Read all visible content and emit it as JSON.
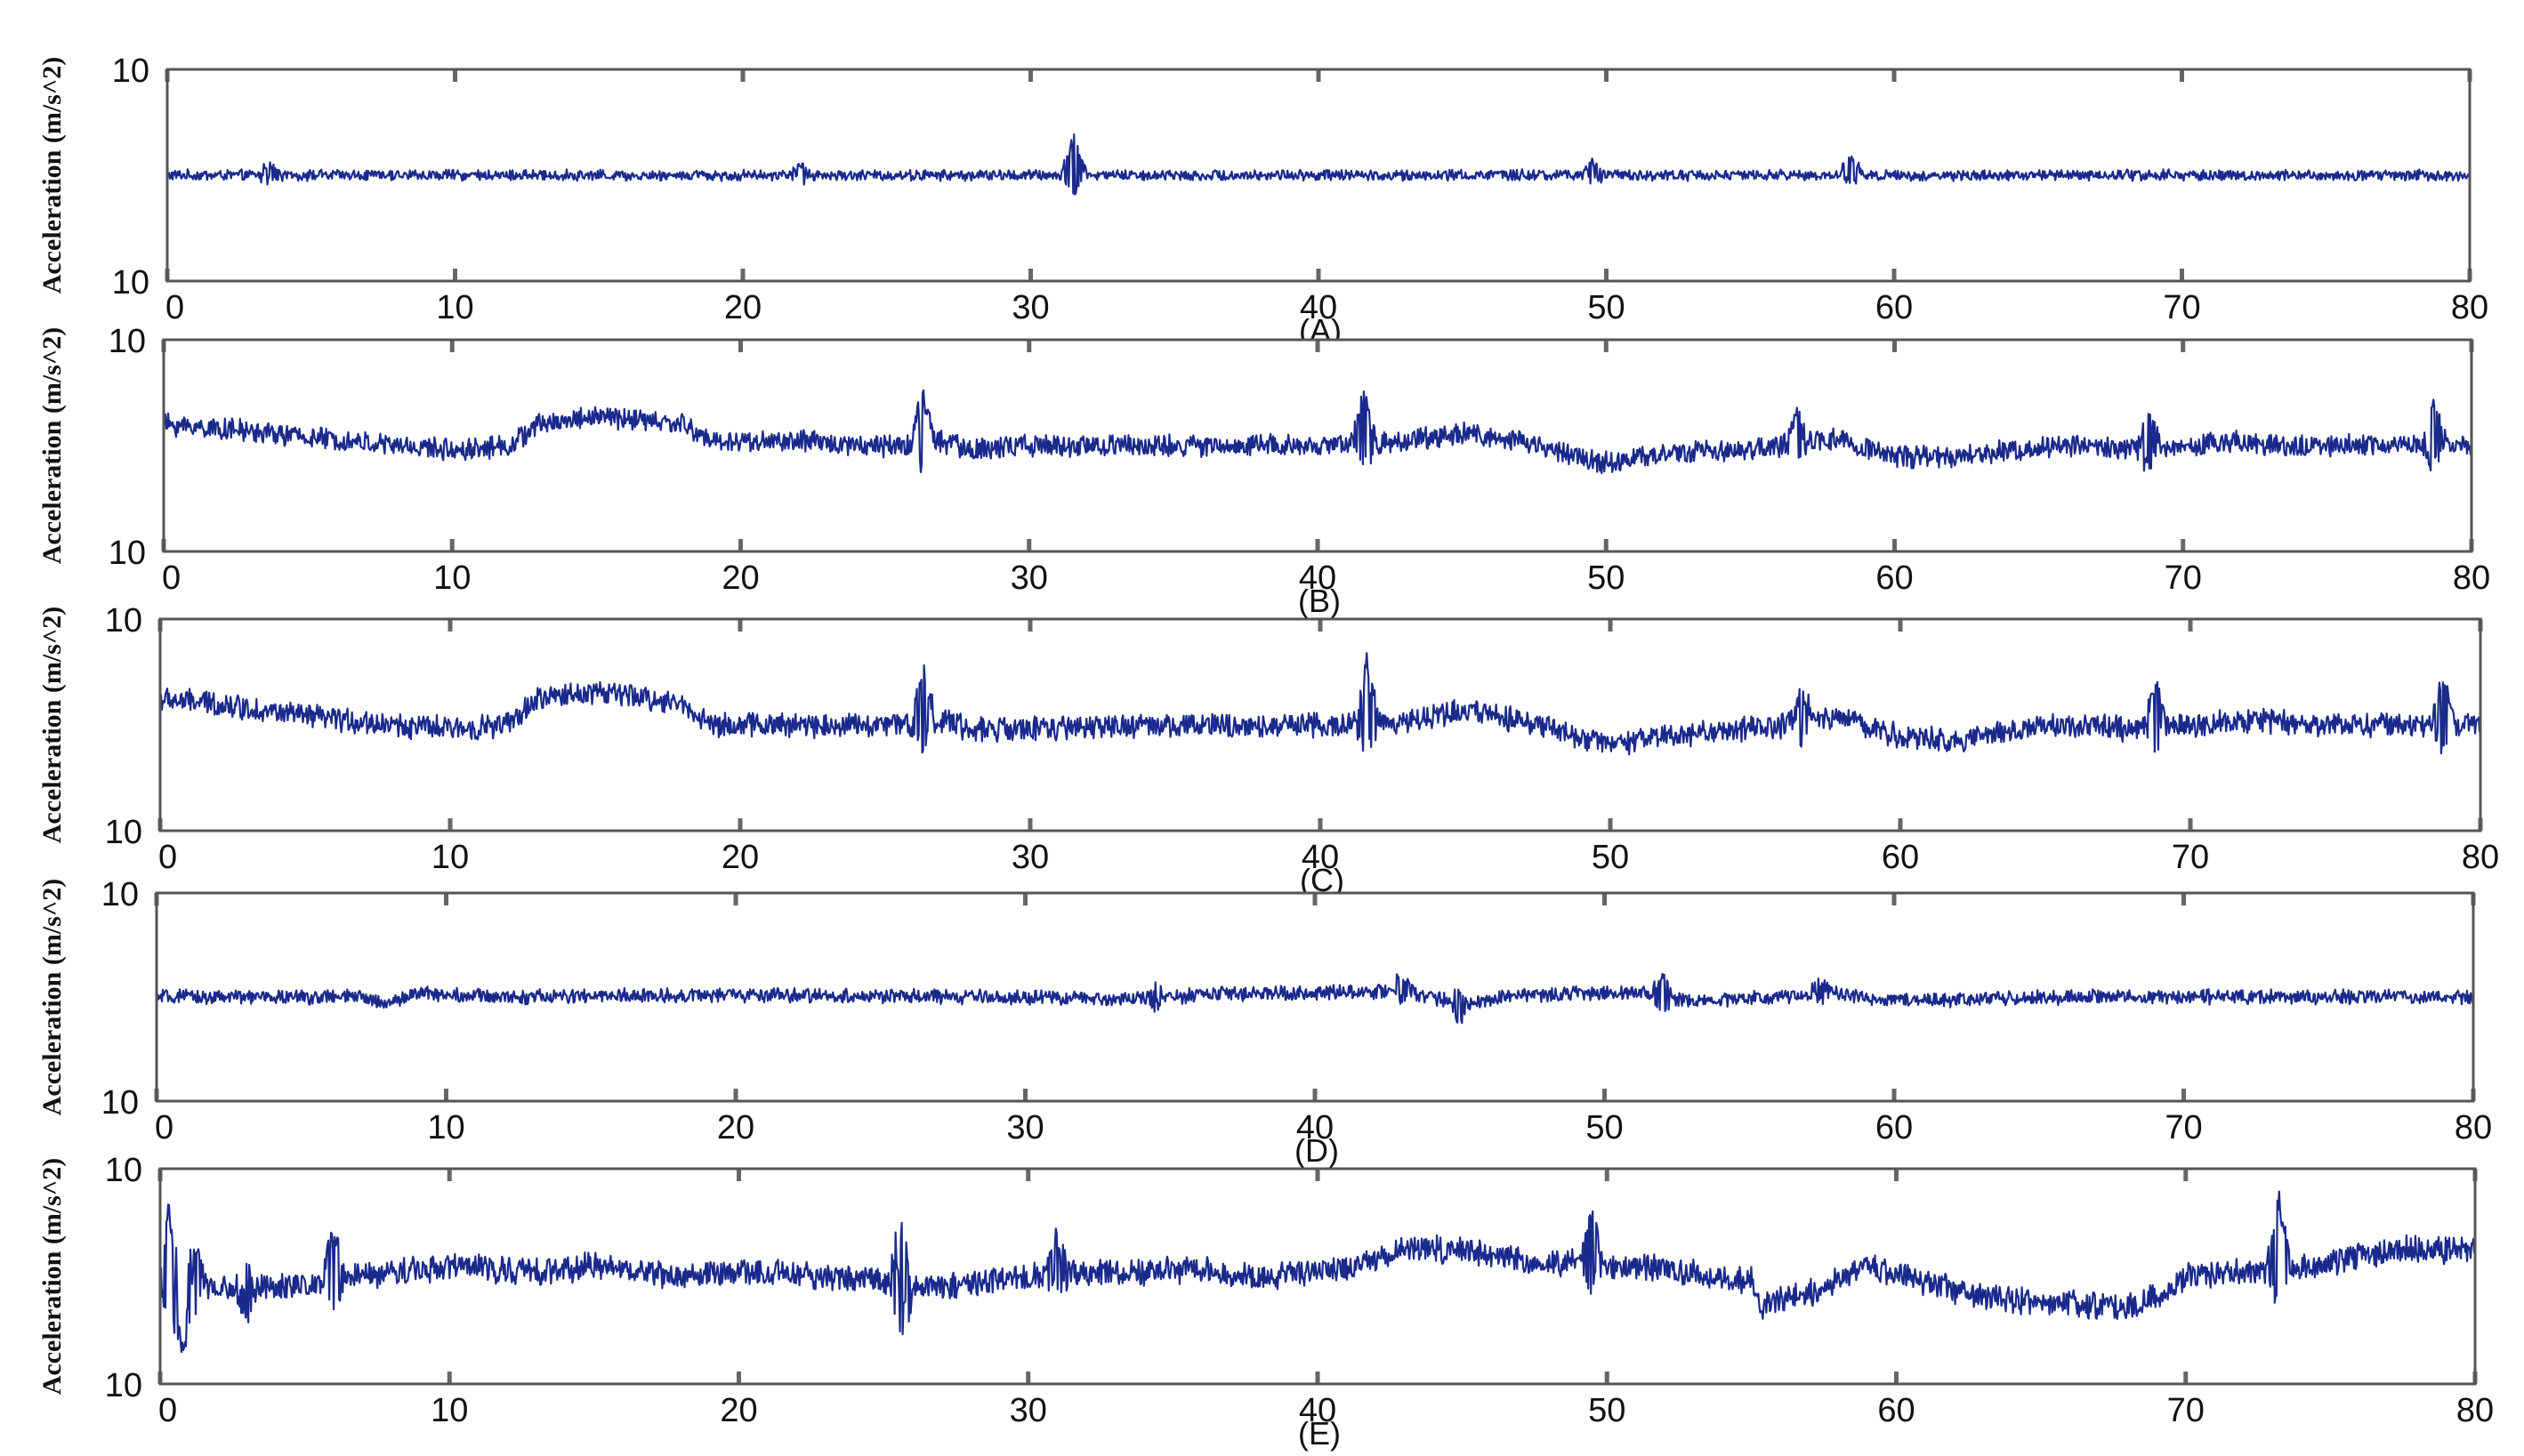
{
  "colors": {
    "trace": "#1a2a8c",
    "axes": "#555555",
    "tick": "#666666",
    "text": "#111111"
  },
  "chart_data": [
    {
      "type": "line",
      "caption": "(A)",
      "ylabel": "Acceleration (m/s^2)",
      "y_tick_labels": [
        "10",
        "10"
      ],
      "x_tick_labels": [
        "0",
        "10",
        "20",
        "30",
        "40",
        "50",
        "60",
        "70",
        "80"
      ],
      "xlim": [
        0,
        80
      ],
      "ylim": [
        0,
        1
      ],
      "noise": 0.022,
      "series": [
        {
          "values": [
            [
              0,
              0.5
            ],
            [
              10,
              0.5
            ],
            [
              20,
              0.5
            ],
            [
              30,
              0.5
            ],
            [
              40,
              0.5
            ],
            [
              50,
              0.5
            ],
            [
              60,
              0.5
            ],
            [
              70,
              0.5
            ],
            [
              80,
              0.5
            ]
          ]
        }
      ],
      "spikes": [
        [
          31.5,
          0.18
        ],
        [
          3.5,
          0.06
        ],
        [
          58.5,
          0.09
        ],
        [
          49.5,
          0.06
        ],
        [
          22,
          0.05
        ]
      ]
    },
    {
      "type": "line",
      "caption": "(B)",
      "ylabel": "Acceleration (m/s^2)",
      "y_tick_labels": [
        "10",
        "10"
      ],
      "x_tick_labels": [
        "0",
        "10",
        "20",
        "30",
        "40",
        "50",
        "60",
        "70",
        "80"
      ],
      "xlim": [
        0,
        80
      ],
      "ylim": [
        0,
        1
      ],
      "noise": 0.045,
      "series": [
        {
          "values": [
            [
              0,
              0.6
            ],
            [
              2,
              0.58
            ],
            [
              5,
              0.54
            ],
            [
              8,
              0.5
            ],
            [
              10,
              0.48
            ],
            [
              12,
              0.5
            ],
            [
              13,
              0.6
            ],
            [
              15,
              0.64
            ],
            [
              18,
              0.6
            ],
            [
              19,
              0.52
            ],
            [
              22,
              0.52
            ],
            [
              25,
              0.5
            ],
            [
              27,
              0.52
            ],
            [
              28,
              0.48
            ],
            [
              30,
              0.5
            ],
            [
              35,
              0.5
            ],
            [
              38,
              0.5
            ],
            [
              41,
              0.5
            ],
            [
              43,
              0.52
            ],
            [
              45,
              0.56
            ],
            [
              47,
              0.52
            ],
            [
              50,
              0.42
            ],
            [
              52,
              0.46
            ],
            [
              55,
              0.48
            ],
            [
              57,
              0.52
            ],
            [
              58,
              0.53
            ],
            [
              60,
              0.45
            ],
            [
              62,
              0.44
            ],
            [
              64,
              0.48
            ],
            [
              66,
              0.5
            ],
            [
              68,
              0.48
            ],
            [
              70,
              0.5
            ],
            [
              72,
              0.52
            ],
            [
              74,
              0.5
            ],
            [
              76,
              0.5
            ],
            [
              79,
              0.5
            ],
            [
              80,
              0.5
            ]
          ]
        }
      ],
      "spikes": [
        [
          26.3,
          0.22
        ],
        [
          41.6,
          0.24
        ],
        [
          56.6,
          0.14
        ],
        [
          68.8,
          0.18
        ],
        [
          78.7,
          0.2
        ]
      ]
    },
    {
      "type": "line",
      "caption": "(C)",
      "ylabel": "Acceleration (m/s^2)",
      "y_tick_labels": [
        "10",
        "10"
      ],
      "x_tick_labels": [
        "0",
        "10",
        "20",
        "30",
        "40",
        "50",
        "60",
        "70",
        "80"
      ],
      "xlim": [
        0,
        80
      ],
      "ylim": [
        0,
        1
      ],
      "noise": 0.05,
      "series": [
        {
          "values": [
            [
              0,
              0.62
            ],
            [
              2,
              0.6
            ],
            [
              5,
              0.54
            ],
            [
              8,
              0.5
            ],
            [
              10,
              0.48
            ],
            [
              12,
              0.5
            ],
            [
              13,
              0.62
            ],
            [
              15,
              0.66
            ],
            [
              18,
              0.6
            ],
            [
              19,
              0.5
            ],
            [
              22,
              0.5
            ],
            [
              25,
              0.5
            ],
            [
              27,
              0.52
            ],
            [
              28,
              0.48
            ],
            [
              30,
              0.48
            ],
            [
              35,
              0.5
            ],
            [
              38,
              0.5
            ],
            [
              41,
              0.5
            ],
            [
              43,
              0.52
            ],
            [
              45,
              0.57
            ],
            [
              47,
              0.52
            ],
            [
              50,
              0.4
            ],
            [
              52,
              0.45
            ],
            [
              55,
              0.48
            ],
            [
              57,
              0.52
            ],
            [
              58,
              0.54
            ],
            [
              60,
              0.44
            ],
            [
              62,
              0.43
            ],
            [
              64,
              0.48
            ],
            [
              66,
              0.5
            ],
            [
              68,
              0.48
            ],
            [
              70,
              0.5
            ],
            [
              72,
              0.52
            ],
            [
              74,
              0.5
            ],
            [
              76,
              0.5
            ],
            [
              79,
              0.5
            ],
            [
              80,
              0.5
            ]
          ]
        }
      ],
      "spikes": [
        [
          26.3,
          0.25
        ],
        [
          41.6,
          0.28
        ],
        [
          56.6,
          0.15
        ],
        [
          68.8,
          0.2
        ],
        [
          78.7,
          0.24
        ]
      ]
    },
    {
      "type": "line",
      "caption": "(D)",
      "ylabel": "Acceleration (m/s^2)",
      "y_tick_labels": [
        "10",
        "10"
      ],
      "x_tick_labels": [
        "0",
        "10",
        "20",
        "30",
        "40",
        "50",
        "60",
        "70",
        "80"
      ],
      "xlim": [
        0,
        80
      ],
      "ylim": [
        0,
        1
      ],
      "noise": 0.03,
      "series": [
        {
          "values": [
            [
              0,
              0.5
            ],
            [
              7,
              0.5
            ],
            [
              8,
              0.47
            ],
            [
              9,
              0.52
            ],
            [
              12,
              0.5
            ],
            [
              20,
              0.51
            ],
            [
              28,
              0.5
            ],
            [
              34,
              0.49
            ],
            [
              36,
              0.51
            ],
            [
              43,
              0.53
            ],
            [
              45,
              0.47
            ],
            [
              47,
              0.51
            ],
            [
              51,
              0.52
            ],
            [
              53,
              0.48
            ],
            [
              58,
              0.52
            ],
            [
              60,
              0.48
            ],
            [
              65,
              0.5
            ],
            [
              70,
              0.5
            ],
            [
              80,
              0.5
            ]
          ]
        }
      ],
      "spikes": [
        [
          43,
          0.08
        ],
        [
          52,
          0.1
        ],
        [
          57.5,
          0.06
        ],
        [
          45,
          -0.08
        ],
        [
          34.5,
          0.06
        ]
      ]
    },
    {
      "type": "line",
      "caption": "(E)",
      "ylabel": "Acceleration (m/s^2)",
      "y_tick_labels": [
        "10",
        "10"
      ],
      "x_tick_labels": [
        "0",
        "10",
        "20",
        "30",
        "40",
        "50",
        "60",
        "70",
        "80"
      ],
      "xlim": [
        0,
        80
      ],
      "ylim": [
        0,
        1
      ],
      "noise": 0.055,
      "series": [
        {
          "values": [
            [
              0,
              0.46
            ],
            [
              2,
              0.45
            ],
            [
              4,
              0.45
            ],
            [
              6,
              0.48
            ],
            [
              8,
              0.52
            ],
            [
              10,
              0.55
            ],
            [
              13,
              0.52
            ],
            [
              15,
              0.55
            ],
            [
              18,
              0.5
            ],
            [
              20,
              0.52
            ],
            [
              23,
              0.5
            ],
            [
              25,
              0.48
            ],
            [
              27,
              0.45
            ],
            [
              30,
              0.5
            ],
            [
              33,
              0.52
            ],
            [
              36,
              0.53
            ],
            [
              38,
              0.5
            ],
            [
              40,
              0.52
            ],
            [
              42,
              0.57
            ],
            [
              43,
              0.64
            ],
            [
              46,
              0.6
            ],
            [
              48,
              0.56
            ],
            [
              50,
              0.55
            ],
            [
              52,
              0.53
            ],
            [
              55,
              0.48
            ],
            [
              55.2,
              0.36
            ],
            [
              57,
              0.42
            ],
            [
              59,
              0.55
            ],
            [
              61,
              0.48
            ],
            [
              63,
              0.4
            ],
            [
              66,
              0.37
            ],
            [
              68,
              0.36
            ],
            [
              69,
              0.4
            ],
            [
              70,
              0.5
            ],
            [
              72,
              0.52
            ],
            [
              74,
              0.54
            ],
            [
              76,
              0.6
            ],
            [
              78,
              0.63
            ],
            [
              80,
              0.62
            ]
          ]
        }
      ],
      "spikes": [
        [
          0.3,
          0.34
        ],
        [
          0.8,
          -0.32
        ],
        [
          1.2,
          0.2
        ],
        [
          6,
          0.22
        ],
        [
          25.5,
          0.22
        ],
        [
          25.7,
          -0.22
        ],
        [
          31,
          0.18
        ],
        [
          49.5,
          0.22
        ],
        [
          73.2,
          0.34
        ],
        [
          3,
          -0.12
        ]
      ]
    }
  ]
}
